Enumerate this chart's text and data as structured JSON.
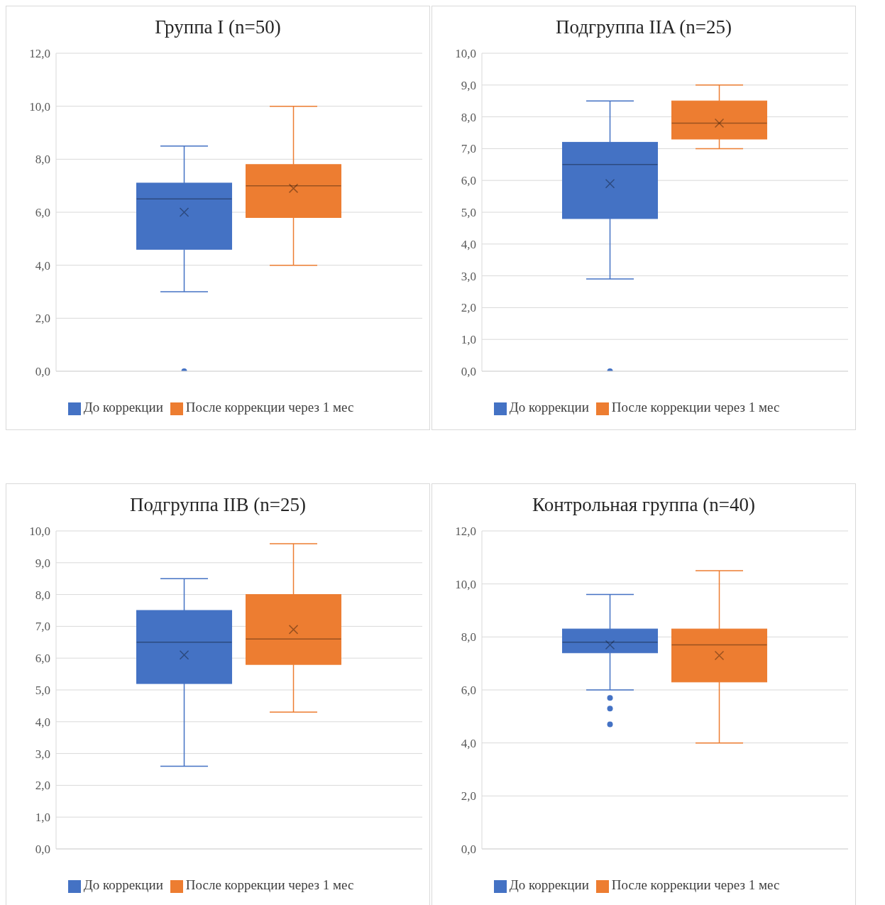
{
  "chart_data": [
    {
      "type": "box",
      "title": "Группа I (n=50)",
      "categories": [
        null
      ],
      "ylim": [
        0,
        12
      ],
      "yticks": [
        {
          "value": 0,
          "label": "0,0"
        },
        {
          "value": 2,
          "label": "2,0"
        },
        {
          "value": 4,
          "label": "4,0"
        },
        {
          "value": 6,
          "label": "6,0"
        },
        {
          "value": 8,
          "label": "8,0"
        },
        {
          "value": 10,
          "label": "10,0"
        },
        {
          "value": 12,
          "label": "12,0"
        }
      ],
      "grid": "y",
      "legend": "bottom",
      "series": [
        {
          "name": "До коррекции",
          "color": "#4472c4",
          "boxes": [
            {
              "low": 3.0,
              "q1": 4.6,
              "median": 6.5,
              "q3": 7.1,
              "high": 8.5,
              "mean": 6.0,
              "outliers": [
                0
              ]
            }
          ]
        },
        {
          "name": "После коррекции через 1 мес",
          "color": "#ed7d31",
          "boxes": [
            {
              "low": 4.0,
              "q1": 5.8,
              "median": 7.0,
              "q3": 7.8,
              "high": 10.0,
              "mean": 6.9
            }
          ]
        }
      ]
    },
    {
      "type": "box",
      "title": "Подгруппа IIA (n=25)",
      "categories": [
        null
      ],
      "ylim": [
        0,
        10
      ],
      "yticks": [
        {
          "value": 0,
          "label": "0,0"
        },
        {
          "value": 1,
          "label": "1,0"
        },
        {
          "value": 2,
          "label": "2,0"
        },
        {
          "value": 3,
          "label": "3,0"
        },
        {
          "value": 4,
          "label": "4,0"
        },
        {
          "value": 5,
          "label": "5,0"
        },
        {
          "value": 6,
          "label": "6,0"
        },
        {
          "value": 7,
          "label": "7,0"
        },
        {
          "value": 8,
          "label": "8,0"
        },
        {
          "value": 9,
          "label": "9,0"
        },
        {
          "value": 10,
          "label": "10,0"
        }
      ],
      "grid": "y",
      "legend": "bottom",
      "series": [
        {
          "name": "До коррекции",
          "color": "#4472c4",
          "boxes": [
            {
              "low": 2.9,
              "q1": 4.8,
              "median": 6.5,
              "q3": 7.2,
              "high": 8.5,
              "mean": 5.9,
              "outliers": [
                0
              ]
            }
          ]
        },
        {
          "name": "После коррекции через 1 мес",
          "color": "#ed7d31",
          "boxes": [
            {
              "low": 7.0,
              "q1": 7.3,
              "median": 7.8,
              "q3": 8.5,
              "high": 9.0,
              "mean": 7.8
            }
          ]
        }
      ]
    },
    {
      "type": "box",
      "title": "Подгруппа IIB (n=25)",
      "categories": [
        null
      ],
      "ylim": [
        0,
        10
      ],
      "yticks": [
        {
          "value": 0,
          "label": "0,0"
        },
        {
          "value": 1,
          "label": "1,0"
        },
        {
          "value": 2,
          "label": "2,0"
        },
        {
          "value": 3,
          "label": "3,0"
        },
        {
          "value": 4,
          "label": "4,0"
        },
        {
          "value": 5,
          "label": "5,0"
        },
        {
          "value": 6,
          "label": "6,0"
        },
        {
          "value": 7,
          "label": "7,0"
        },
        {
          "value": 8,
          "label": "8,0"
        },
        {
          "value": 9,
          "label": "9,0"
        },
        {
          "value": 10,
          "label": "10,0"
        }
      ],
      "grid": "y",
      "legend": "bottom",
      "series": [
        {
          "name": "До коррекции",
          "color": "#4472c4",
          "boxes": [
            {
              "low": 2.6,
              "q1": 5.2,
              "median": 6.5,
              "q3": 7.5,
              "high": 8.5,
              "mean": 6.1
            }
          ]
        },
        {
          "name": "После коррекции через 1 мес",
          "color": "#ed7d31",
          "boxes": [
            {
              "low": 4.3,
              "q1": 5.8,
              "median": 6.6,
              "q3": 8.0,
              "high": 9.6,
              "mean": 6.9
            }
          ]
        }
      ]
    },
    {
      "type": "box",
      "title": "Контрольная группа (n=40)",
      "categories": [
        null
      ],
      "ylim": [
        0,
        12
      ],
      "yticks": [
        {
          "value": 0,
          "label": "0,0"
        },
        {
          "value": 2,
          "label": "2,0"
        },
        {
          "value": 4,
          "label": "4,0"
        },
        {
          "value": 6,
          "label": "6,0"
        },
        {
          "value": 8,
          "label": "8,0"
        },
        {
          "value": 10,
          "label": "10,0"
        },
        {
          "value": 12,
          "label": "12,0"
        }
      ],
      "grid": "y",
      "legend": "bottom",
      "series": [
        {
          "name": "До коррекции",
          "color": "#4472c4",
          "boxes": [
            {
              "low": 6.0,
              "q1": 7.4,
              "median": 7.8,
              "q3": 8.3,
              "high": 9.6,
              "mean": 7.7,
              "outliers": [
                5.7,
                5.3,
                4.7
              ]
            }
          ]
        },
        {
          "name": "После коррекции через 1 мес",
          "color": "#ed7d31",
          "boxes": [
            {
              "low": 4.0,
              "q1": 6.3,
              "median": 7.7,
              "q3": 8.3,
              "high": 10.5,
              "mean": 7.3
            }
          ]
        }
      ]
    }
  ]
}
